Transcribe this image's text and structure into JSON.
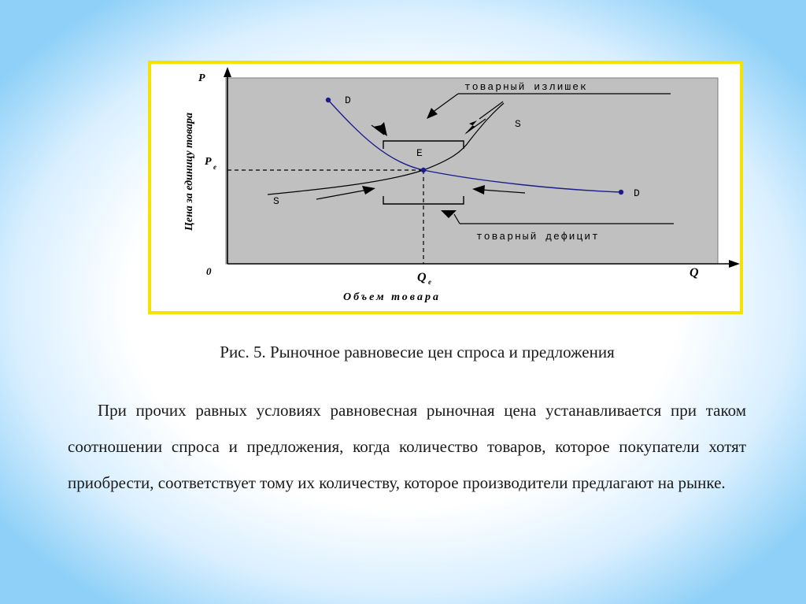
{
  "diagram": {
    "axis_p": "P",
    "axis_q": "Q",
    "origin": "0",
    "p_e": "P",
    "p_e_sub": "e",
    "q_e": "Q",
    "q_e_sub": "e",
    "ylabel": "Цена за единицу товара",
    "xlabel": "Объем товара",
    "label_d_top": "D",
    "label_d_bottom": "D",
    "label_s_top": "S",
    "label_s_bottom": "S",
    "label_e": "E",
    "surplus": "товарный излишек",
    "deficit": "товарный дефицит",
    "colors": {
      "frame": "#f4e300",
      "plot_bg": "#c0c0c0",
      "demand": "#1c1c8c"
    }
  },
  "caption": "Рис. 5. Рыночное равновесие цен спроса и предложения",
  "paragraph": "При прочих равных условиях равновесная рыночная цена устанавливается при таком соотношении спроса и предложения, когда количество товаров, которое покупатели хотят приобрести, соответствует тому их количеству, которое производители предлагают на рынке."
}
